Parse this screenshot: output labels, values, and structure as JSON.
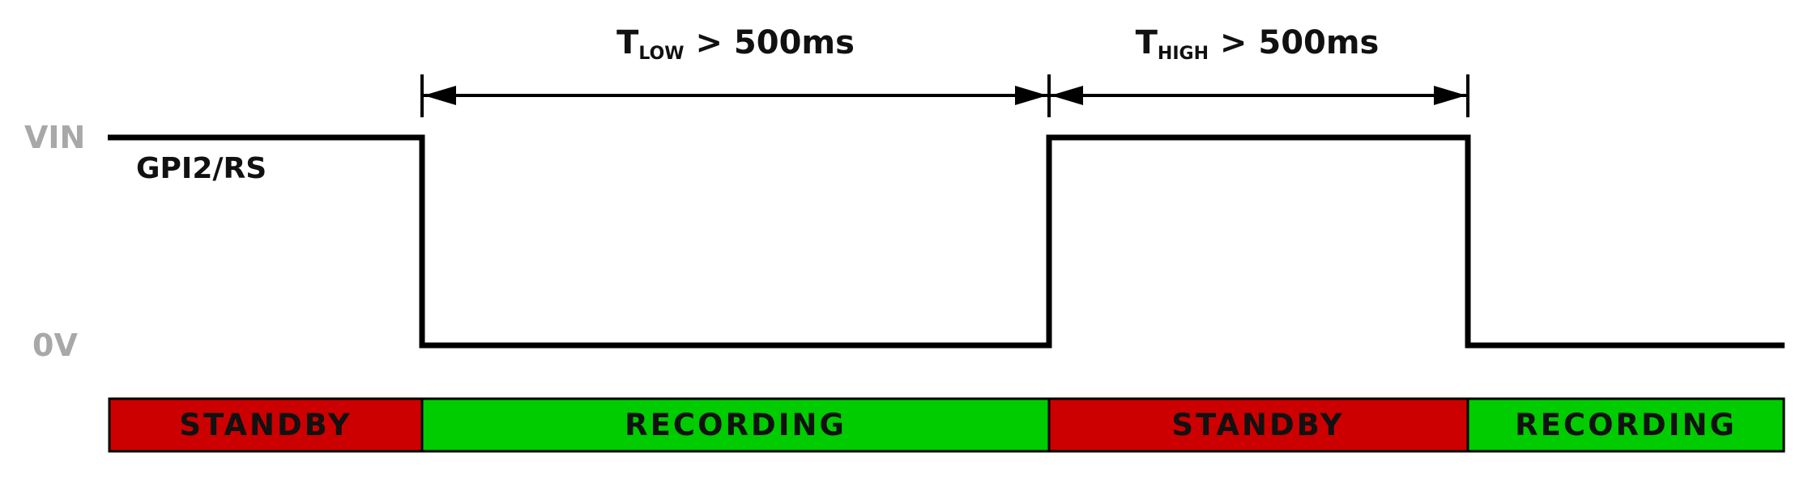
{
  "levels": {
    "high": "VIN",
    "low": "0V"
  },
  "signal": {
    "name": "GPI2/RS"
  },
  "timings": {
    "low": {
      "main": "T",
      "sub": "LOW",
      "rest": " > 500ms"
    },
    "high": {
      "main": "T",
      "sub": "HIGH",
      "rest": " > 500ms"
    }
  },
  "states": [
    {
      "label": "STANDBY",
      "color": "#cc0000"
    },
    {
      "label": "RECORDING",
      "color": "#00cc00"
    },
    {
      "label": "STANDBY",
      "color": "#cc0000"
    },
    {
      "label": "RECORDING",
      "color": "#00cc00"
    }
  ]
}
